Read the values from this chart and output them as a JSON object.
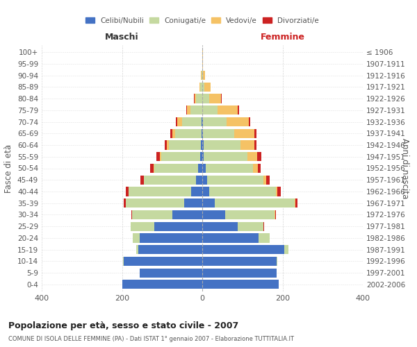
{
  "age_groups": [
    "0-4",
    "5-9",
    "10-14",
    "15-19",
    "20-24",
    "25-29",
    "30-34",
    "35-39",
    "40-44",
    "45-49",
    "50-54",
    "55-59",
    "60-64",
    "65-69",
    "70-74",
    "75-79",
    "80-84",
    "85-89",
    "90-94",
    "95-99",
    "100+"
  ],
  "birth_years": [
    "2002-2006",
    "1997-2001",
    "1992-1996",
    "1987-1991",
    "1982-1986",
    "1977-1981",
    "1972-1976",
    "1967-1971",
    "1962-1966",
    "1957-1961",
    "1952-1956",
    "1947-1951",
    "1942-1946",
    "1937-1941",
    "1932-1936",
    "1927-1931",
    "1922-1926",
    "1917-1921",
    "1912-1916",
    "1907-1911",
    "≤ 1906"
  ],
  "male_celibe": [
    200,
    155,
    195,
    160,
    155,
    120,
    75,
    45,
    28,
    15,
    10,
    5,
    3,
    2,
    1,
    0,
    0,
    0,
    0,
    0,
    0
  ],
  "male_coniugato": [
    0,
    0,
    2,
    5,
    18,
    58,
    100,
    145,
    155,
    130,
    110,
    98,
    80,
    65,
    50,
    30,
    15,
    5,
    2,
    0,
    0
  ],
  "male_vedovo": [
    0,
    0,
    0,
    0,
    0,
    0,
    0,
    0,
    0,
    1,
    2,
    3,
    5,
    8,
    12,
    8,
    4,
    2,
    1,
    0,
    0
  ],
  "male_divorziato": [
    0,
    0,
    0,
    0,
    0,
    1,
    2,
    5,
    8,
    8,
    8,
    8,
    5,
    5,
    3,
    2,
    2,
    0,
    0,
    0,
    0
  ],
  "female_celibe": [
    190,
    185,
    185,
    205,
    140,
    88,
    58,
    32,
    18,
    12,
    8,
    4,
    3,
    2,
    1,
    0,
    0,
    0,
    0,
    0,
    0
  ],
  "female_coniugato": [
    0,
    0,
    2,
    10,
    28,
    65,
    122,
    198,
    165,
    140,
    118,
    108,
    92,
    78,
    60,
    38,
    18,
    5,
    2,
    0,
    0
  ],
  "female_vedovo": [
    0,
    0,
    0,
    0,
    0,
    0,
    1,
    2,
    4,
    8,
    12,
    25,
    35,
    50,
    55,
    50,
    28,
    15,
    5,
    2,
    1
  ],
  "female_divorziato": [
    0,
    0,
    0,
    0,
    0,
    1,
    2,
    5,
    8,
    8,
    8,
    10,
    5,
    5,
    4,
    3,
    2,
    1,
    0,
    0,
    0
  ],
  "color_celibe": "#4472c4",
  "color_coniugato": "#c5d9a0",
  "color_vedovo": "#f5c265",
  "color_divorziato": "#cc2222",
  "title_main": "Popolazione per età, sesso e stato civile - 2007",
  "title_sub": "COMUNE DI ISOLA DELLE FEMMINE (PA) - Dati ISTAT 1° gennaio 2007 - Elaborazione TUTTITALIA.IT",
  "xlim": 400,
  "ylabel_left": "Fasce di età",
  "ylabel_right": "Anni di nascita",
  "xlabel_maschi": "Maschi",
  "xlabel_femmine": "Femmine"
}
